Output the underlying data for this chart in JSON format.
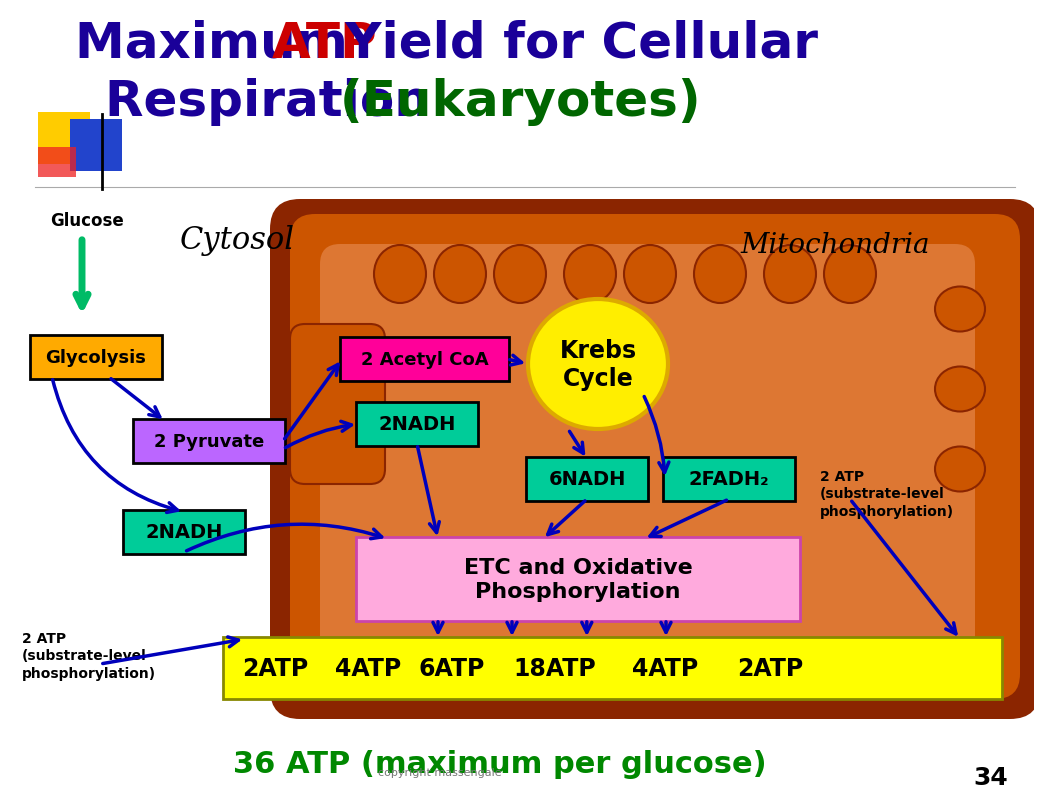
{
  "title_color1": "#1a0099",
  "title_color_atp": "#cc0000",
  "title_color_euk": "#006600",
  "slide_number": "34",
  "bottom_text": "36 ATP (maximum per glucose)",
  "bottom_color": "#008800",
  "copyright_text": "copyright massengale",
  "bg_color": "#ffffff",
  "mito_outer_color": "#8B2500",
  "mito_body_color": "#cc5500",
  "mito_inner_color": "#dd7733",
  "cytosol_label": "Cytosol",
  "mito_label": "Mitochondria",
  "glucose_label": "Glucose",
  "glycolysis_label": "Glycolysis",
  "glycolysis_color": "#ffaa00",
  "pyruvate_label": "2 Pyruvate",
  "pyruvate_color": "#bb66ff",
  "acetyl_label": "2 Acetyl CoA",
  "acetyl_color": "#ff0099",
  "krebs_label": "Krebs\nCycle",
  "krebs_color": "#ffee00",
  "nadh_color": "#00cc99",
  "etc_label": "ETC and Oxidative\nPhosphorylation",
  "etc_color": "#ffaadd",
  "atp_bottom_values": [
    "2ATP",
    "4ATP",
    "6ATP",
    "18ATP",
    "4ATP",
    "2ATP"
  ],
  "atp_bottom_color": "#ffff00",
  "arrow_color": "#0000bb",
  "deco_yellow": "#ffcc00",
  "deco_blue": "#2244cc",
  "deco_red": "#ee2222"
}
